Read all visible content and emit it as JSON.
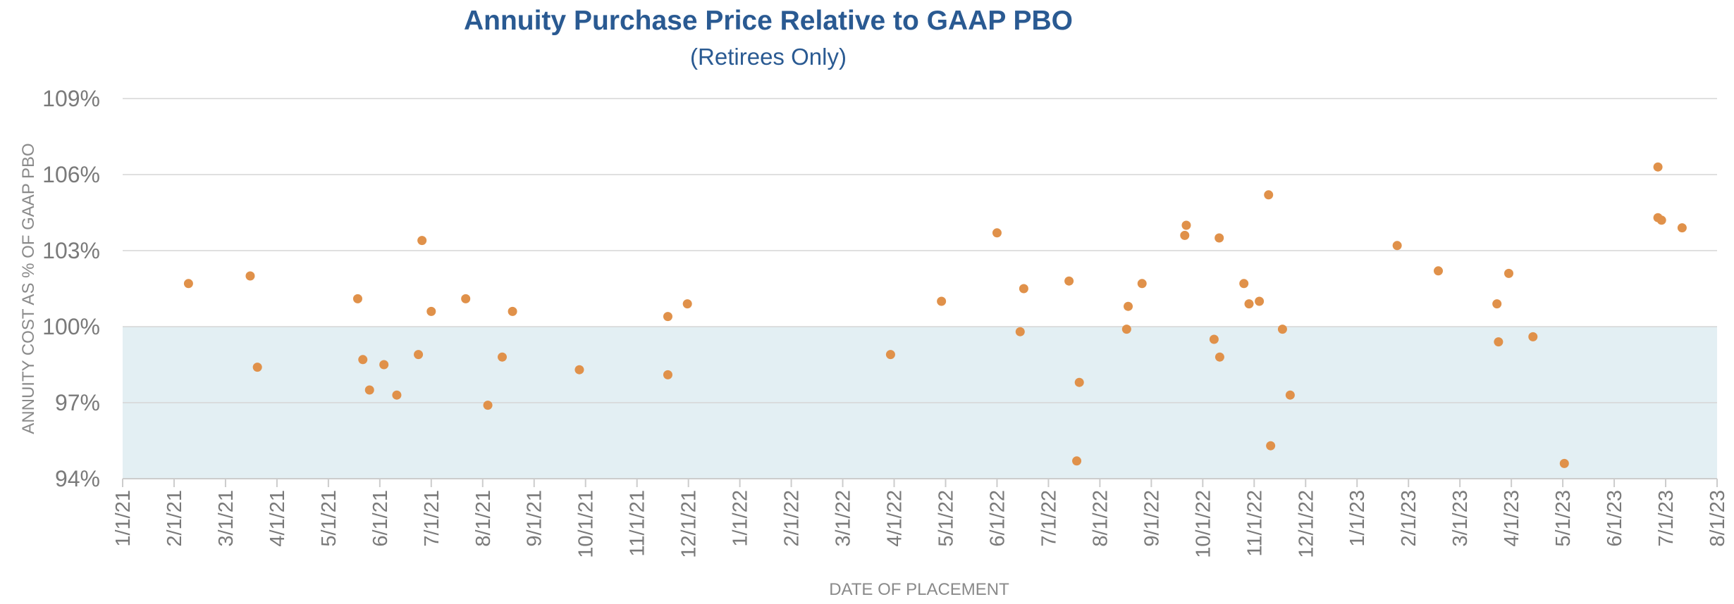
{
  "chart_data": {
    "type": "scatter",
    "title": "Annuity Purchase Price Relative to GAAP PBO",
    "subtitle": "(Retirees Only)",
    "xlabel": "DATE OF PLACEMENT",
    "ylabel": "ANNUITY COST AS % OF GAAP PBO",
    "ylim": [
      94,
      109
    ],
    "yticks": [
      94,
      97,
      100,
      103,
      106,
      109
    ],
    "ytick_labels": [
      "94%",
      "97%",
      "100%",
      "103%",
      "106%",
      "109%"
    ],
    "x_tick_labels": [
      "1/1/21",
      "2/1/21",
      "3/1/21",
      "4/1/21",
      "5/1/21",
      "6/1/21",
      "7/1/21",
      "8/1/21",
      "9/1/21",
      "10/1/21",
      "11/1/21",
      "12/1/21",
      "1/1/22",
      "2/1/22",
      "3/1/22",
      "4/1/22",
      "5/1/22",
      "6/1/22",
      "7/1/22",
      "8/1/22",
      "9/1/22",
      "10/1/22",
      "11/1/22",
      "12/1/22",
      "1/1/23",
      "2/1/23",
      "3/1/23",
      "4/1/23",
      "5/1/23",
      "6/1/23",
      "7/1/23",
      "8/1/23"
    ],
    "x_unit": "months since 1/1/21",
    "xlim": [
      0,
      31
    ],
    "shaded_band": {
      "from": 94,
      "to": 100,
      "color": "#e3eff3"
    },
    "point_color": "#e0914a",
    "grid_color": "#d6d6d6",
    "points": [
      {
        "x": 1.28,
        "y": 101.7
      },
      {
        "x": 2.48,
        "y": 102.0
      },
      {
        "x": 2.62,
        "y": 98.4
      },
      {
        "x": 4.57,
        "y": 101.1
      },
      {
        "x": 4.67,
        "y": 98.7
      },
      {
        "x": 4.8,
        "y": 97.5
      },
      {
        "x": 5.08,
        "y": 98.5
      },
      {
        "x": 5.33,
        "y": 97.3
      },
      {
        "x": 5.75,
        "y": 98.9
      },
      {
        "x": 5.82,
        "y": 103.4
      },
      {
        "x": 6.0,
        "y": 100.6
      },
      {
        "x": 6.67,
        "y": 101.1
      },
      {
        "x": 7.1,
        "y": 96.9
      },
      {
        "x": 7.38,
        "y": 98.8
      },
      {
        "x": 7.58,
        "y": 100.6
      },
      {
        "x": 8.88,
        "y": 98.3
      },
      {
        "x": 10.6,
        "y": 100.4
      },
      {
        "x": 10.6,
        "y": 98.1
      },
      {
        "x": 10.98,
        "y": 100.9
      },
      {
        "x": 14.93,
        "y": 98.9
      },
      {
        "x": 15.92,
        "y": 101.0
      },
      {
        "x": 17.0,
        "y": 103.7
      },
      {
        "x": 17.45,
        "y": 99.8
      },
      {
        "x": 17.52,
        "y": 101.5
      },
      {
        "x": 18.4,
        "y": 101.8
      },
      {
        "x": 18.55,
        "y": 94.7
      },
      {
        "x": 18.6,
        "y": 97.8
      },
      {
        "x": 19.52,
        "y": 99.9
      },
      {
        "x": 19.55,
        "y": 100.8
      },
      {
        "x": 19.82,
        "y": 101.7
      },
      {
        "x": 20.65,
        "y": 103.6
      },
      {
        "x": 20.68,
        "y": 104.0
      },
      {
        "x": 21.22,
        "y": 99.5
      },
      {
        "x": 21.32,
        "y": 103.5
      },
      {
        "x": 21.33,
        "y": 98.8
      },
      {
        "x": 21.8,
        "y": 101.7
      },
      {
        "x": 21.9,
        "y": 100.9
      },
      {
        "x": 22.1,
        "y": 101.0
      },
      {
        "x": 22.28,
        "y": 105.2
      },
      {
        "x": 22.32,
        "y": 95.3
      },
      {
        "x": 22.55,
        "y": 99.9
      },
      {
        "x": 22.7,
        "y": 97.3
      },
      {
        "x": 24.78,
        "y": 103.2
      },
      {
        "x": 25.58,
        "y": 102.2
      },
      {
        "x": 26.72,
        "y": 100.9
      },
      {
        "x": 26.75,
        "y": 99.4
      },
      {
        "x": 26.95,
        "y": 102.1
      },
      {
        "x": 27.42,
        "y": 99.6
      },
      {
        "x": 28.03,
        "y": 94.6
      },
      {
        "x": 29.85,
        "y": 106.3
      },
      {
        "x": 29.85,
        "y": 104.3
      },
      {
        "x": 29.92,
        "y": 104.2
      },
      {
        "x": 30.32,
        "y": 103.9
      }
    ]
  }
}
